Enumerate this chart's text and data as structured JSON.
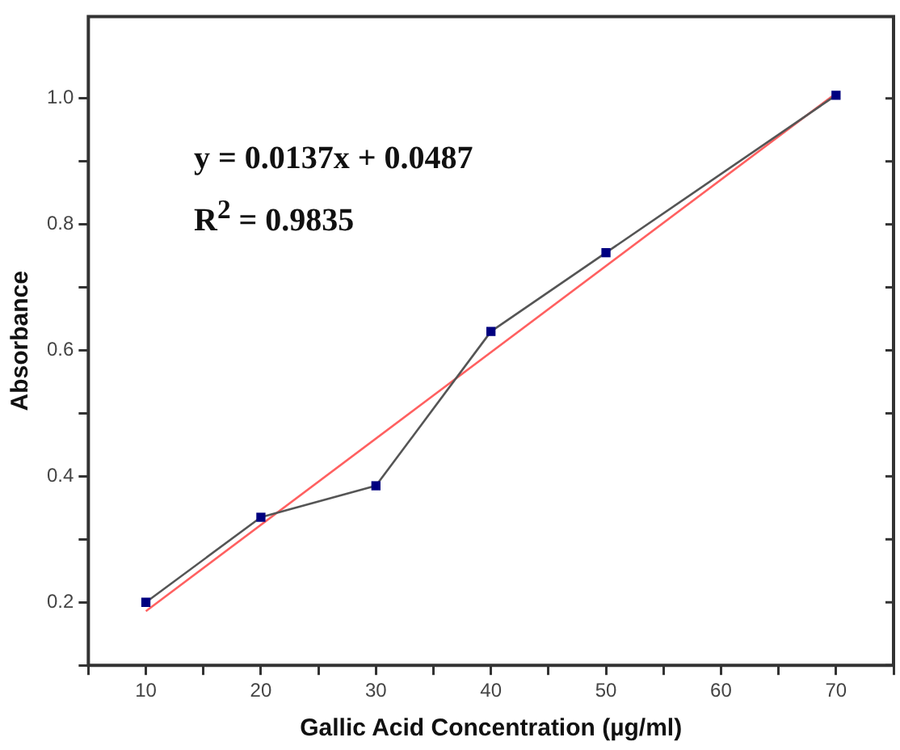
{
  "chart_data": {
    "type": "line",
    "xlabel": "Gallic Acid Concentration (µg/ml)",
    "ylabel": "Absorbance",
    "annotations": [
      "y = 0.0137x + 0.0487",
      "R$^{2}$ = 0.9835"
    ],
    "xlim": [
      5,
      75
    ],
    "xticks": [
      {
        "value": 5,
        "label": null
      },
      10,
      {
        "value": 15,
        "label": null
      },
      20,
      {
        "value": 25,
        "label": null
      },
      30,
      {
        "value": 35,
        "label": null
      },
      40,
      {
        "value": 45,
        "label": null
      },
      50,
      {
        "value": 55,
        "label": null
      },
      60,
      {
        "value": 65,
        "label": null
      },
      70,
      {
        "value": 75,
        "label": null
      }
    ],
    "ylim": [
      0.1,
      1.13
    ],
    "yticks": [
      {
        "value": 0.1,
        "label": null
      },
      0.2,
      {
        "value": 0.3,
        "label": null
      },
      0.4,
      {
        "value": 0.5,
        "label": null
      },
      0.6,
      {
        "value": 0.7,
        "label": null
      },
      0.8,
      {
        "value": 0.9,
        "label": null
      },
      {
        "value": 1,
        "label": "1.0"
      }
    ],
    "grid": false,
    "legend": false,
    "series": [
      {
        "type": "line",
        "color": "#555555",
        "marker": "square",
        "x": [
          10,
          20,
          30,
          40,
          50,
          70
        ],
        "values": [
          0.2,
          0.335,
          0.385,
          0.63,
          0.755,
          1.005
        ]
      },
      {
        "type": "line",
        "color": "#ff6060",
        "marker": "none",
        "x": [
          10,
          70
        ],
        "values": [
          0.186,
          1.008
        ]
      }
    ]
  }
}
